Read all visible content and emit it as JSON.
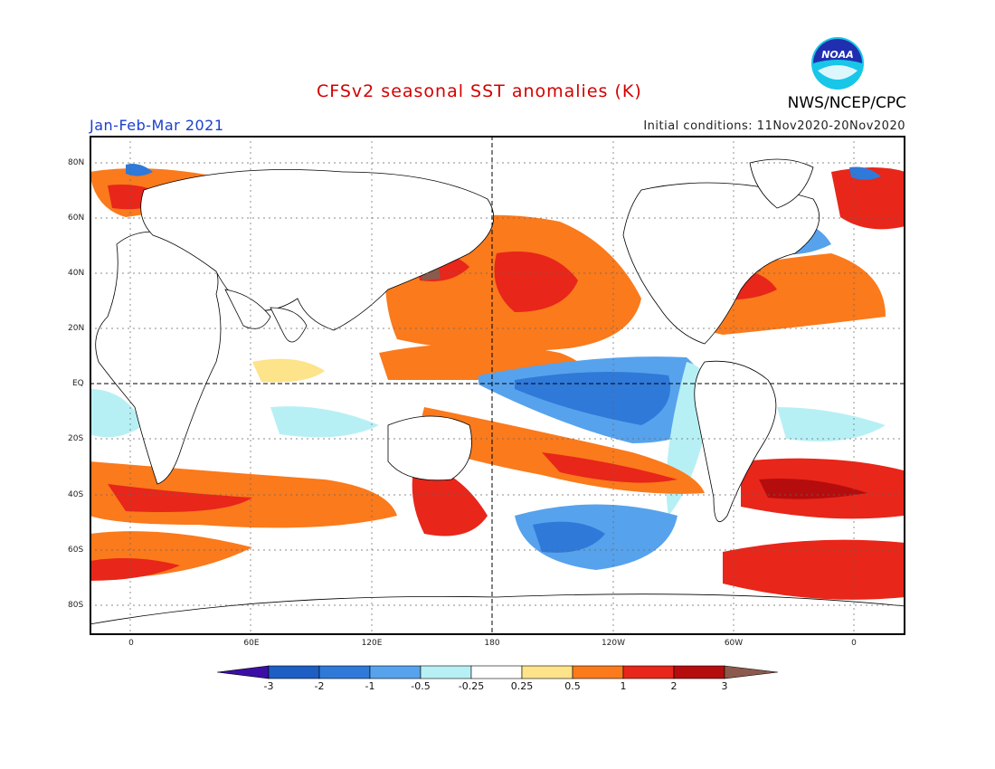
{
  "header": {
    "title": "CFSv2 seasonal SST anomalies (K)",
    "season": "Jan-Feb-Mar 2021",
    "initial_conditions": "Initial conditions: 11Nov2020-20Nov2020",
    "agency": "NWS/NCEP/CPC",
    "logo_text": "NOAA"
  },
  "axes": {
    "lat_labels": [
      "80N",
      "60N",
      "40N",
      "20N",
      "EQ",
      "20S",
      "40S",
      "60S",
      "80S"
    ],
    "lon_labels": [
      "0",
      "60E",
      "120E",
      "180",
      "120W",
      "60W",
      "0"
    ]
  },
  "colorbar": {
    "labels": [
      "-3",
      "-2",
      "-1",
      "-0.5",
      "-0.25",
      "0.25",
      "0.5",
      "1",
      "2",
      "3"
    ],
    "colors": [
      "#3b0fa6",
      "#1c5ec4",
      "#2f79d9",
      "#57a2ec",
      "#b7f0f4",
      "#ffffff",
      "#fde38a",
      "#fa7a1c",
      "#e8261a",
      "#b50d0d",
      "#8c5a4c"
    ]
  }
}
